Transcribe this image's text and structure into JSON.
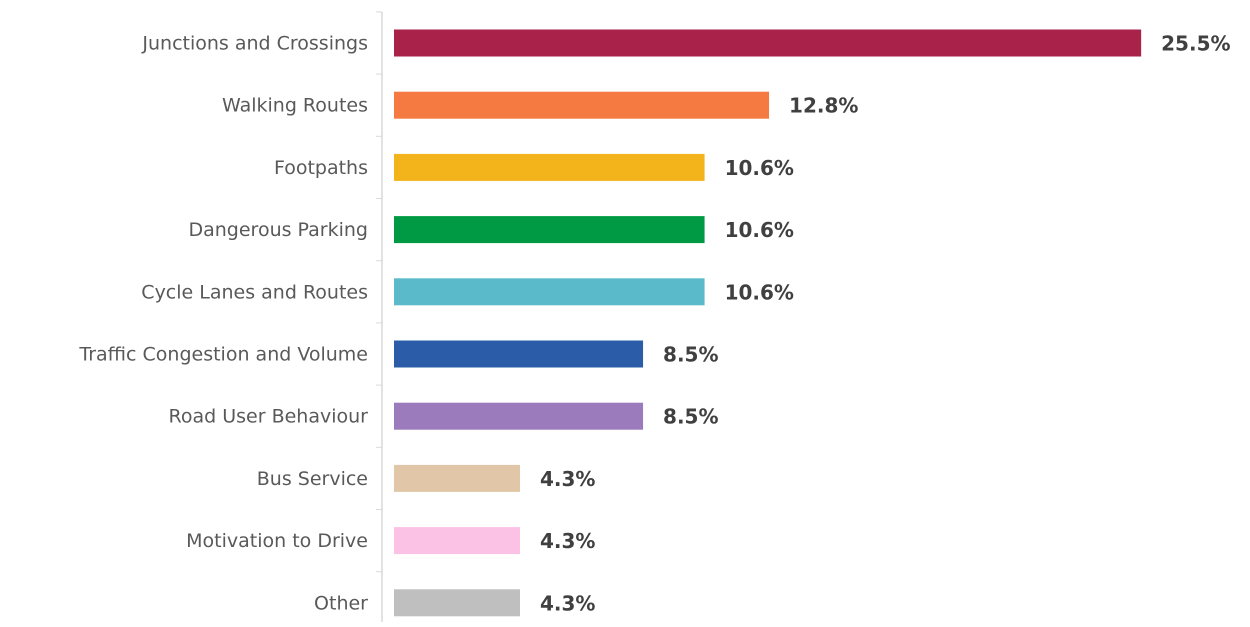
{
  "chart_data": {
    "type": "bar",
    "orientation": "horizontal",
    "categories": [
      "Junctions and Crossings",
      "Walking Routes",
      "Footpaths",
      "Dangerous Parking",
      "Cycle Lanes and Routes",
      "Traffic Congestion and Volume",
      "Road User Behaviour",
      "Bus Service",
      "Motivation to Drive",
      "Other"
    ],
    "values": [
      25.5,
      12.8,
      10.6,
      10.6,
      10.6,
      8.5,
      8.5,
      4.3,
      4.3,
      4.3
    ],
    "value_labels": [
      "25.5%",
      "12.8%",
      "10.6%",
      "10.6%",
      "10.6%",
      "8.5%",
      "8.5%",
      "4.3%",
      "4.3%",
      "4.3%"
    ],
    "colors": [
      "#a9224a",
      "#f47a42",
      "#f2b31b",
      "#009a44",
      "#5bbac9",
      "#2b5ca8",
      "#9b7bbb",
      "#e2c6a8",
      "#fbc2e5",
      "#bfbfbf"
    ]
  }
}
